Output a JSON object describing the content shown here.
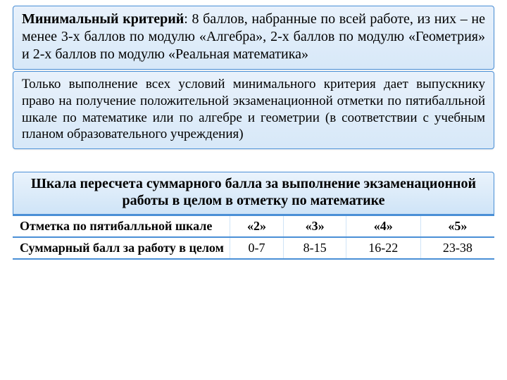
{
  "colors": {
    "panel_border": "#4a8fd6",
    "panel_bg_top": "#e8f1fb",
    "panel_bg_bottom": "#d7e8f8",
    "table_border": "#4a8fd6",
    "text": "#000000",
    "bg": "#ffffff"
  },
  "typography": {
    "family": "Times New Roman",
    "body_size_pt": 15,
    "title_size_pt": 15,
    "header_weight": 700
  },
  "criteria": {
    "bold_lead": "Минимальный критерий",
    "rest": ": 8 баллов, набранные по всей работе, из них – не менее 3-х баллов по модулю «Алгебра»,  2-х баллов по модулю «Геометрия» и 2-х баллов по модулю «Реальная математика»"
  },
  "note": "Только выполнение всех условий минимального критерия дает выпускнику право на получение положительной экзаменационной отметки по пятибалльной шкале по математике или по алгебре и геометрии (в соответствии с учебным планом образовательного учреждения)",
  "scale": {
    "title": "Шкала пересчета суммарного балла за выполнение экзаменационной работы в целом в отметку по математике",
    "type": "table",
    "columns": [
      {
        "label": "Отметка по пятибалльной шкале",
        "is_row_header": true
      },
      {
        "label": "«2»"
      },
      {
        "label": "«3»"
      },
      {
        "label": "«4»"
      },
      {
        "label": "«5»"
      }
    ],
    "row": {
      "header": "Суммарный балл за работу в целом",
      "values": [
        "0-7",
        "8-15",
        "16-22",
        "23-38"
      ]
    }
  }
}
